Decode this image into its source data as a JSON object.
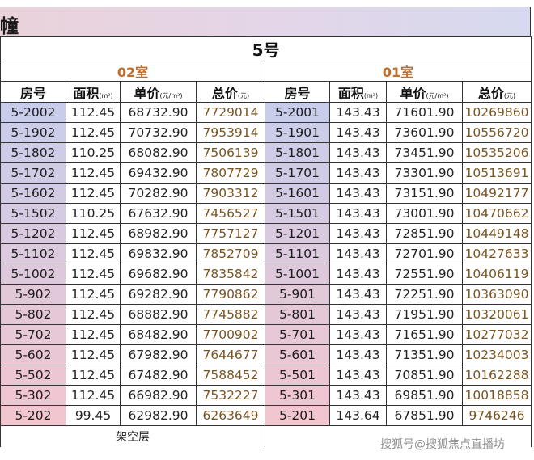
{
  "banner": {
    "title": "幢"
  },
  "building": "5号",
  "units": [
    "02室",
    "01室"
  ],
  "headers": [
    {
      "label": "房号",
      "unit": ""
    },
    {
      "label": "面积",
      "unit": "(m²)"
    },
    {
      "label": "单价",
      "unit": "(元/m²)"
    },
    {
      "label": "总价",
      "unit": "(元)"
    }
  ],
  "rows": [
    {
      "room_a": "5-2002",
      "area_a": "112.45",
      "price_a": "68732.90",
      "total_a": "7729014",
      "room_b": "5-2001",
      "area_b": "143.43",
      "price_b": "71601.90",
      "total_b": "10269860"
    },
    {
      "room_a": "5-1902",
      "area_a": "112.45",
      "price_a": "70732.90",
      "total_a": "7953914",
      "room_b": "5-1901",
      "area_b": "143.43",
      "price_b": "73601.90",
      "total_b": "10556720"
    },
    {
      "room_a": "5-1802",
      "area_a": "110.25",
      "price_a": "68082.90",
      "total_a": "7506139",
      "room_b": "5-1801",
      "area_b": "143.43",
      "price_b": "73451.90",
      "total_b": "10535206"
    },
    {
      "room_a": "5-1702",
      "area_a": "112.45",
      "price_a": "69432.90",
      "total_a": "7807729",
      "room_b": "5-1701",
      "area_b": "143.43",
      "price_b": "73301.90",
      "total_b": "10513691"
    },
    {
      "room_a": "5-1602",
      "area_a": "112.45",
      "price_a": "70282.90",
      "total_a": "7903312",
      "room_b": "5-1601",
      "area_b": "143.43",
      "price_b": "73151.90",
      "total_b": "10492177"
    },
    {
      "room_a": "5-1502",
      "area_a": "110.25",
      "price_a": "67632.90",
      "total_a": "7456527",
      "room_b": "5-1501",
      "area_b": "143.43",
      "price_b": "73001.90",
      "total_b": "10470662"
    },
    {
      "room_a": "5-1202",
      "area_a": "112.45",
      "price_a": "68982.90",
      "total_a": "7757127",
      "room_b": "5-1201",
      "area_b": "143.43",
      "price_b": "72851.90",
      "total_b": "10449148"
    },
    {
      "room_a": "5-1102",
      "area_a": "112.45",
      "price_a": "69832.90",
      "total_a": "7852709",
      "room_b": "5-1101",
      "area_b": "143.43",
      "price_b": "72701.90",
      "total_b": "10427633"
    },
    {
      "room_a": "5-1002",
      "area_a": "112.45",
      "price_a": "69682.90",
      "total_a": "7835842",
      "room_b": "5-1001",
      "area_b": "143.43",
      "price_b": "72551.90",
      "total_b": "10406119"
    },
    {
      "room_a": "5-902",
      "area_a": "112.45",
      "price_a": "69282.90",
      "total_a": "7790862",
      "room_b": "5-901",
      "area_b": "143.43",
      "price_b": "72251.90",
      "total_b": "10363090"
    },
    {
      "room_a": "5-802",
      "area_a": "112.45",
      "price_a": "68882.90",
      "total_a": "7745882",
      "room_b": "5-801",
      "area_b": "143.43",
      "price_b": "71951.90",
      "total_b": "10320061"
    },
    {
      "room_a": "5-702",
      "area_a": "112.45",
      "price_a": "68482.90",
      "total_a": "7700902",
      "room_b": "5-701",
      "area_b": "143.43",
      "price_b": "71651.90",
      "total_b": "10277032"
    },
    {
      "room_a": "5-602",
      "area_a": "112.45",
      "price_a": "67982.90",
      "total_a": "7644677",
      "room_b": "5-601",
      "area_b": "143.43",
      "price_b": "71351.90",
      "total_b": "10234003"
    },
    {
      "room_a": "5-502",
      "area_a": "112.45",
      "price_a": "67482.90",
      "total_a": "7588452",
      "room_b": "5-501",
      "area_b": "143.43",
      "price_b": "70851.90",
      "total_b": "10162288"
    },
    {
      "room_a": "5-302",
      "area_a": "112.45",
      "price_a": "66982.90",
      "total_a": "7532227",
      "room_b": "5-301",
      "area_b": "143.43",
      "price_b": "69851.90",
      "total_b": "10018858"
    },
    {
      "room_a": "5-202",
      "area_a": "99.45",
      "price_a": "62982.90",
      "total_a": "6263649",
      "room_b": "5-201",
      "area_b": "143.64",
      "price_b": "67851.90",
      "total_b": "9746246"
    }
  ],
  "footer": {
    "left": "架空层"
  },
  "watermark": "搜狐号@搜狐焦点直播坊",
  "colors": {
    "room_top": "#c8cdeb",
    "room_bottom": "#f2c6cf",
    "unit_label": "#c06c2c",
    "total_text": "#7a5522"
  }
}
